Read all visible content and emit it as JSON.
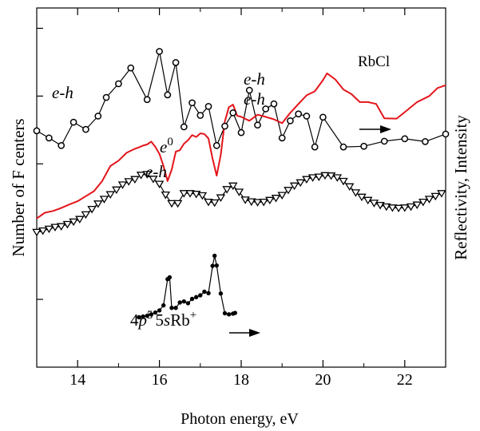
{
  "chart_data": {
    "type": "line",
    "title": "",
    "xlabel": "Photon  energy, eV",
    "ylabel_left": "Number of F centers",
    "ylabel_right": "Reflectivity, Intensity",
    "xlim": [
      13,
      23
    ],
    "xticks": [
      14,
      16,
      18,
      20,
      22
    ],
    "ylim": [
      0,
      1
    ],
    "grid": false,
    "legend": "none",
    "annotations": {
      "rbcl": "RbCl",
      "eh_left": "e-h",
      "eh_top1": "e-h",
      "eh_top2": "e-h",
      "e0": "e",
      "e0_sup": "0",
      "eh_mid": "e-h",
      "lum_4p": "4",
      "lum_p": "p",
      "lum_5": "5",
      "lum_5s": "5",
      "lum_s": "s",
      "lum_rb": "Rb",
      "lum_plus": "+"
    },
    "series": [
      {
        "key": "fcenters",
        "color": "#000000",
        "marker": "circle",
        "x": [
          13.0,
          13.3,
          13.6,
          13.9,
          14.2,
          14.5,
          14.7,
          15.0,
          15.3,
          15.7,
          16.0,
          16.2,
          16.4,
          16.6,
          16.8,
          17.0,
          17.2,
          17.4,
          17.6,
          17.8,
          18.0,
          18.2,
          18.4,
          18.6,
          18.8,
          19.0,
          19.2,
          19.4,
          19.6,
          19.8,
          20.0,
          20.5,
          21.0,
          21.5,
          22.0,
          22.5,
          23.0
        ],
        "y": [
          0.658,
          0.638,
          0.617,
          0.682,
          0.662,
          0.699,
          0.751,
          0.789,
          0.833,
          0.745,
          0.879,
          0.758,
          0.848,
          0.669,
          0.736,
          0.701,
          0.726,
          0.617,
          0.671,
          0.708,
          0.653,
          0.771,
          0.674,
          0.719,
          0.733,
          0.638,
          0.686,
          0.705,
          0.699,
          0.613,
          0.696,
          0.613,
          0.615,
          0.629,
          0.636,
          0.628,
          0.649
        ]
      },
      {
        "key": "reflectivity",
        "color": "#e4151b",
        "marker": "none",
        "x": [
          13.0,
          13.2,
          13.4,
          13.6,
          13.8,
          14.0,
          14.2,
          14.4,
          14.6,
          14.8,
          15.0,
          15.2,
          15.4,
          15.5,
          15.6,
          15.7,
          15.8,
          15.9,
          16.0,
          16.1,
          16.2,
          16.3,
          16.4,
          16.5,
          16.6,
          16.7,
          16.8,
          16.9,
          17.0,
          17.1,
          17.2,
          17.3,
          17.4,
          17.5,
          17.6,
          17.7,
          17.8,
          17.9,
          18.0,
          18.2,
          18.4,
          18.6,
          18.8,
          19.0,
          19.2,
          19.4,
          19.6,
          19.8,
          20.0,
          20.1,
          20.3,
          20.5,
          20.7,
          20.9,
          21.1,
          21.3,
          21.5,
          21.8,
          22.0,
          22.3,
          22.6,
          22.8,
          23.0
        ],
        "y": [
          0.414,
          0.43,
          0.435,
          0.443,
          0.453,
          0.462,
          0.476,
          0.49,
          0.518,
          0.56,
          0.575,
          0.597,
          0.608,
          0.612,
          0.617,
          0.62,
          0.628,
          0.613,
          0.594,
          0.56,
          0.518,
          0.55,
          0.6,
          0.604,
          0.622,
          0.632,
          0.646,
          0.641,
          0.651,
          0.649,
          0.637,
          0.58,
          0.533,
          0.591,
          0.684,
          0.724,
          0.731,
          0.7,
          0.697,
          0.686,
          0.703,
          0.697,
          0.69,
          0.679,
          0.708,
          0.733,
          0.757,
          0.768,
          0.799,
          0.818,
          0.801,
          0.773,
          0.76,
          0.738,
          0.738,
          0.733,
          0.693,
          0.692,
          0.71,
          0.738,
          0.755,
          0.777,
          0.785
        ]
      },
      {
        "key": "triangles",
        "color": "#000000",
        "marker": "triangle-down",
        "x": [
          13.0,
          13.15,
          13.3,
          13.45,
          13.6,
          13.75,
          13.9,
          14.05,
          14.2,
          14.35,
          14.5,
          14.65,
          14.8,
          14.95,
          15.1,
          15.25,
          15.4,
          15.55,
          15.7,
          15.85,
          16.0,
          16.15,
          16.3,
          16.45,
          16.6,
          16.75,
          16.9,
          17.05,
          17.2,
          17.35,
          17.5,
          17.65,
          17.8,
          17.95,
          18.1,
          18.25,
          18.4,
          18.55,
          18.7,
          18.85,
          19.0,
          19.15,
          19.3,
          19.45,
          19.6,
          19.75,
          19.9,
          20.05,
          20.2,
          20.35,
          20.5,
          20.65,
          20.8,
          20.95,
          21.1,
          21.25,
          21.4,
          21.55,
          21.7,
          21.85,
          22.0,
          22.15,
          22.3,
          22.45,
          22.6,
          22.75,
          22.9
        ],
        "y": [
          0.376,
          0.38,
          0.385,
          0.39,
          0.392,
          0.398,
          0.405,
          0.412,
          0.425,
          0.44,
          0.455,
          0.468,
          0.481,
          0.494,
          0.508,
          0.517,
          0.523,
          0.535,
          0.537,
          0.524,
          0.51,
          0.48,
          0.456,
          0.456,
          0.484,
          0.484,
          0.482,
          0.478,
          0.46,
          0.458,
          0.472,
          0.495,
          0.505,
          0.488,
          0.466,
          0.461,
          0.459,
          0.46,
          0.465,
          0.471,
          0.479,
          0.493,
          0.505,
          0.514,
          0.523,
          0.528,
          0.53,
          0.534,
          0.533,
          0.528,
          0.518,
          0.503,
          0.486,
          0.474,
          0.465,
          0.457,
          0.451,
          0.447,
          0.444,
          0.443,
          0.444,
          0.447,
          0.452,
          0.46,
          0.468,
          0.476,
          0.484
        ]
      },
      {
        "key": "luminescence",
        "color": "#000000",
        "marker": "dot",
        "x": [
          15.5,
          15.6,
          15.7,
          15.8,
          15.9,
          16.0,
          16.1,
          16.2,
          16.25,
          16.3,
          16.4,
          16.5,
          16.6,
          16.7,
          16.8,
          16.9,
          17.0,
          17.1,
          17.2,
          17.3,
          17.35,
          17.4,
          17.5,
          17.6,
          17.7,
          17.8,
          17.85
        ],
        "y": [
          0.139,
          0.141,
          0.143,
          0.147,
          0.152,
          0.158,
          0.172,
          0.245,
          0.25,
          0.165,
          0.165,
          0.18,
          0.183,
          0.178,
          0.19,
          0.195,
          0.2,
          0.21,
          0.206,
          0.282,
          0.31,
          0.283,
          0.205,
          0.15,
          0.147,
          0.149,
          0.151
        ]
      }
    ]
  }
}
